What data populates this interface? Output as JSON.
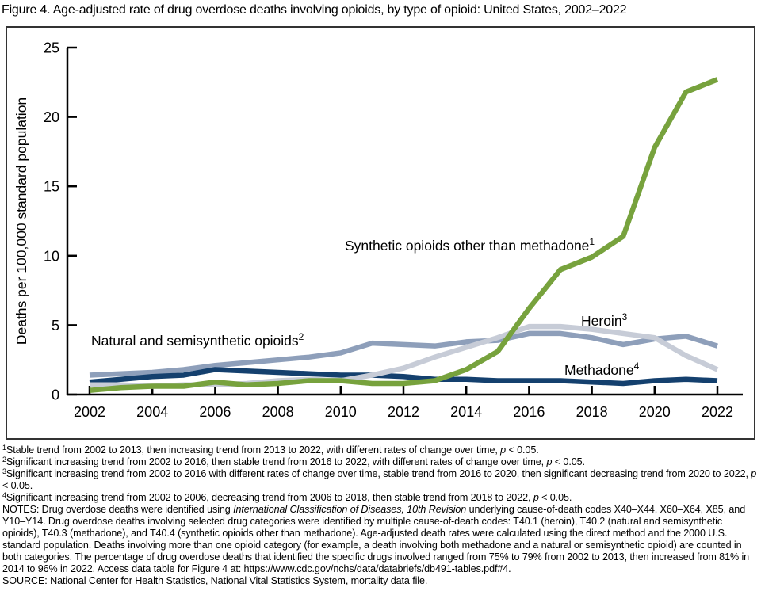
{
  "title": "Figure 4. Age-adjusted rate of drug overdose deaths involving opioids, by type of opioid: United States, 2002–2022",
  "colors": {
    "synthetic_green": "#77a23d",
    "heroin_light_gray": "#c7ccd7",
    "natural_slate_blue": "#8e9fba",
    "methadone_navy": "#14406e",
    "axis_black": "#000000",
    "box_border": "#333333"
  },
  "chart_data": {
    "type": "line",
    "title": "Figure 4. Age-adjusted rate of drug overdose deaths involving opioids, by type of opioid: United States, 2002–2022",
    "xlabel": "",
    "ylabel": "Deaths per 100,000 standard population",
    "ylim": [
      0,
      25
    ],
    "yticks": [
      0,
      5,
      10,
      15,
      20,
      25
    ],
    "xticks": [
      2002,
      2004,
      2006,
      2008,
      2010,
      2012,
      2014,
      2016,
      2018,
      2020,
      2022
    ],
    "grid": "off",
    "legend": "direct line labels (no legend box)",
    "x": [
      2002,
      2003,
      2004,
      2005,
      2006,
      2007,
      2008,
      2009,
      2010,
      2011,
      2012,
      2013,
      2014,
      2015,
      2016,
      2017,
      2018,
      2019,
      2020,
      2021,
      2022
    ],
    "series": [
      {
        "name": "Natural and semisynthetic opioids",
        "sup": "2",
        "color": "#8e9fba",
        "values": [
          1.4,
          1.5,
          1.6,
          1.8,
          2.1,
          2.3,
          2.5,
          2.7,
          3.0,
          3.7,
          3.6,
          3.5,
          3.8,
          3.9,
          4.4,
          4.4,
          4.1,
          3.6,
          4.0,
          4.2,
          3.5
        ]
      },
      {
        "name": "Methadone",
        "sup": "4",
        "color": "#14406e",
        "values": [
          0.9,
          1.1,
          1.3,
          1.4,
          1.8,
          1.7,
          1.6,
          1.5,
          1.4,
          1.4,
          1.3,
          1.1,
          1.1,
          1.0,
          1.0,
          1.0,
          0.9,
          0.8,
          1.0,
          1.1,
          1.0
        ]
      },
      {
        "name": "Heroin",
        "sup": "3",
        "color": "#c7ccd7",
        "values": [
          0.7,
          0.7,
          0.6,
          0.7,
          0.7,
          0.8,
          1.0,
          1.1,
          1.0,
          1.4,
          1.9,
          2.7,
          3.4,
          4.1,
          4.9,
          4.9,
          4.7,
          4.4,
          4.1,
          2.8,
          1.8
        ]
      },
      {
        "name": "Synthetic opioids other than methadone",
        "sup": "1",
        "color": "#77a23d",
        "values": [
          0.3,
          0.5,
          0.6,
          0.6,
          0.9,
          0.7,
          0.8,
          1.0,
          1.0,
          0.8,
          0.8,
          1.0,
          1.8,
          3.1,
          6.2,
          9.0,
          9.9,
          11.4,
          17.8,
          21.8,
          22.7
        ]
      }
    ]
  },
  "footnotes": [
    {
      "sup": "1",
      "segments": [
        {
          "t": "Stable trend from 2002 to 2013, then increasing trend from 2013 to 2022, with different rates of change over time, ",
          "i": false
        },
        {
          "t": "p",
          "i": true
        },
        {
          "t": " < 0.05.",
          "i": false
        }
      ]
    },
    {
      "sup": "2",
      "segments": [
        {
          "t": "Significant increasing trend from 2002 to 2016, then stable trend from 2016 to 2022, with different rates of change over time, ",
          "i": false
        },
        {
          "t": "p",
          "i": true
        },
        {
          "t": " < 0.05.",
          "i": false
        }
      ]
    },
    {
      "sup": "3",
      "segments": [
        {
          "t": "Significant increasing trend from 2002 to 2016 with different rates of change over time, stable trend from 2016 to 2020, then significant decreasing trend from 2020 to 2022, ",
          "i": false
        },
        {
          "t": "p",
          "i": true
        },
        {
          "t": " < 0.05.",
          "i": false
        }
      ]
    },
    {
      "sup": "4",
      "segments": [
        {
          "t": "Significant increasing trend from 2002 to 2006, decreasing trend from 2006 to 2018, then stable trend from 2018 to 2022, ",
          "i": false
        },
        {
          "t": "p",
          "i": true
        },
        {
          "t": " < 0.05.",
          "i": false
        }
      ]
    }
  ],
  "notes": {
    "segments": [
      {
        "t": "NOTES: Drug overdose deaths were identified using ",
        "i": false
      },
      {
        "t": "International Classification of Diseases, 10th Revision",
        "i": true
      },
      {
        "t": " underlying cause-of-death codes X40–X44, X60–X64, X85, and Y10–Y14. Drug overdose deaths involving selected drug categories were identified by multiple cause-of-death codes: T40.1 (heroin), T40.2 (natural and semisynthetic opioids), T40.3 (methadone), and T40.4 (synthetic opioids other than methadone). Age-adjusted death rates were calculated using the direct method and the 2000 U.S. standard population. Deaths involving more than one opioid category (for example, a death involving both methadone and a natural or semisynthetic opioid) are counted in both categories. The percentage of drug overdose deaths that identified the specific drugs involved ranged from 75% to 79% from 2002 to 2013, then increased from 81% in 2014 to 96% in 2022. Access data table for Figure 4 at: https://www.cdc.gov/nchs/data/databriefs/db491-tables.pdf#4.",
        "i": false
      }
    ]
  },
  "source": {
    "segments": [
      {
        "t": "SOURCE: National Center for Health Statistics, National Vital Statistics System, mortality data file.",
        "i": false
      }
    ]
  }
}
